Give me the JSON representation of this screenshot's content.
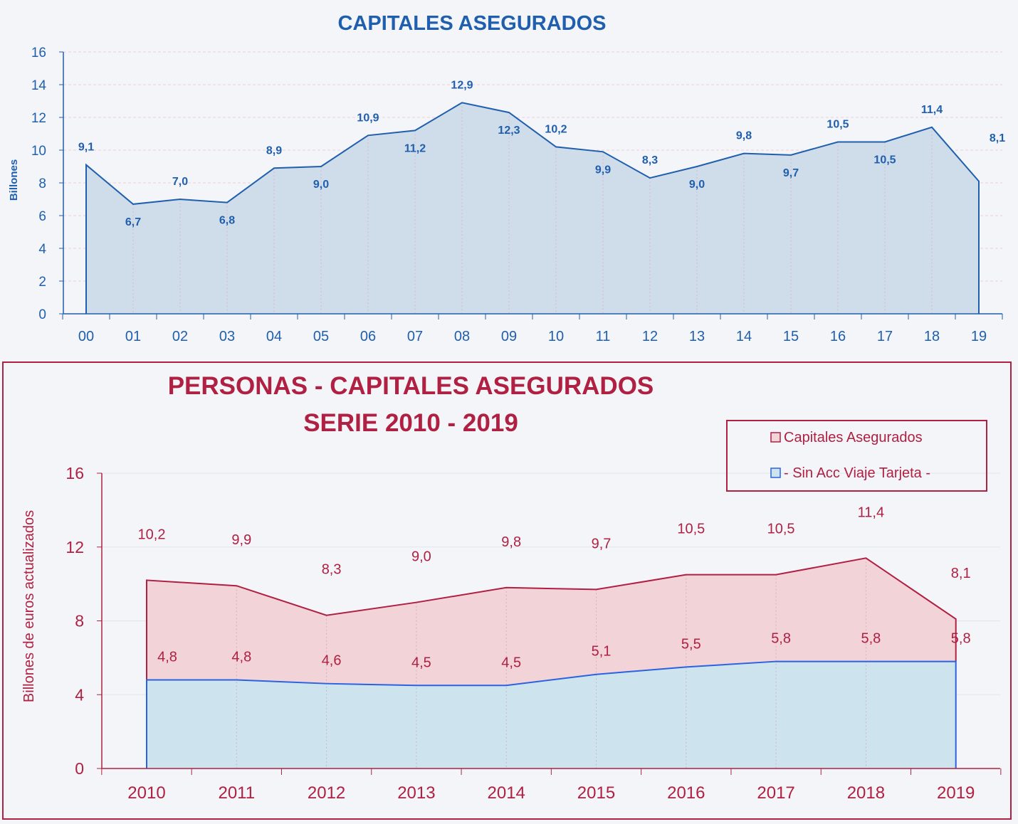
{
  "chart_data": [
    {
      "type": "area",
      "title": "CAPITALES ASEGURADOS",
      "ylabel": "Billones",
      "ylim": [
        0,
        16
      ],
      "yticks": [
        "0",
        "2",
        "4",
        "6",
        "8",
        "10",
        "12",
        "14",
        "16"
      ],
      "categories": [
        "00",
        "01",
        "02",
        "03",
        "04",
        "05",
        "06",
        "07",
        "08",
        "09",
        "10",
        "11",
        "12",
        "13",
        "14",
        "15",
        "16",
        "17",
        "18",
        "19"
      ],
      "series": [
        {
          "values": [
            9.1,
            6.7,
            7.0,
            6.8,
            8.9,
            9.0,
            10.9,
            11.2,
            12.9,
            12.3,
            10.2,
            9.9,
            8.3,
            9.0,
            9.8,
            9.7,
            10.5,
            10.5,
            11.4,
            8.1
          ],
          "labels": [
            "9,1",
            "6,7",
            "7,0",
            "6,8",
            "8,9",
            "9,0",
            "10,9",
            "11,2",
            "12,9",
            "12,3",
            "10,2",
            "9,9",
            "8,3",
            "9,0",
            "9,8",
            "9,7",
            "10,5",
            "10,5",
            "11,4",
            "8,1"
          ],
          "color": "#1f5fad",
          "fill": "#cfdcea"
        }
      ],
      "grid": true,
      "legend": "none"
    },
    {
      "type": "area",
      "title_lines": [
        "PERSONAS - CAPITALES ASEGURADOS",
        "SERIE 2010 - 2019"
      ],
      "ylabel": "Billones de euros actualizados",
      "ylim": [
        0,
        16
      ],
      "yticks": [
        "0",
        "4",
        "8",
        "12",
        "16"
      ],
      "categories": [
        "2010",
        "2011",
        "2012",
        "2013",
        "2014",
        "2015",
        "2016",
        "2017",
        "2018",
        "2019"
      ],
      "series": [
        {
          "name": "Capitales Asegurados",
          "values": [
            10.2,
            9.9,
            8.3,
            9.0,
            9.8,
            9.7,
            10.5,
            10.5,
            11.4,
            8.1
          ],
          "labels": [
            "10,2",
            "9,9",
            "8,3",
            "9,0",
            "9,8",
            "9,7",
            "10,5",
            "10,5",
            "11,4",
            "8,1"
          ],
          "color": "#b02042",
          "fill": "#f2d3d8"
        },
        {
          "name": "- Sin Acc Viaje Tarjeta -",
          "values": [
            4.8,
            4.8,
            4.6,
            4.5,
            4.5,
            5.1,
            5.5,
            5.8,
            5.8,
            5.8
          ],
          "labels": [
            "4,8",
            "4,8",
            "4,6",
            "4,5",
            "4,5",
            "5,1",
            "5,5",
            "5,8",
            "5,8",
            "5,8"
          ],
          "color": "#2a62e0",
          "fill": "#cde4ee"
        }
      ],
      "grid": true,
      "legend": "top-right"
    }
  ]
}
